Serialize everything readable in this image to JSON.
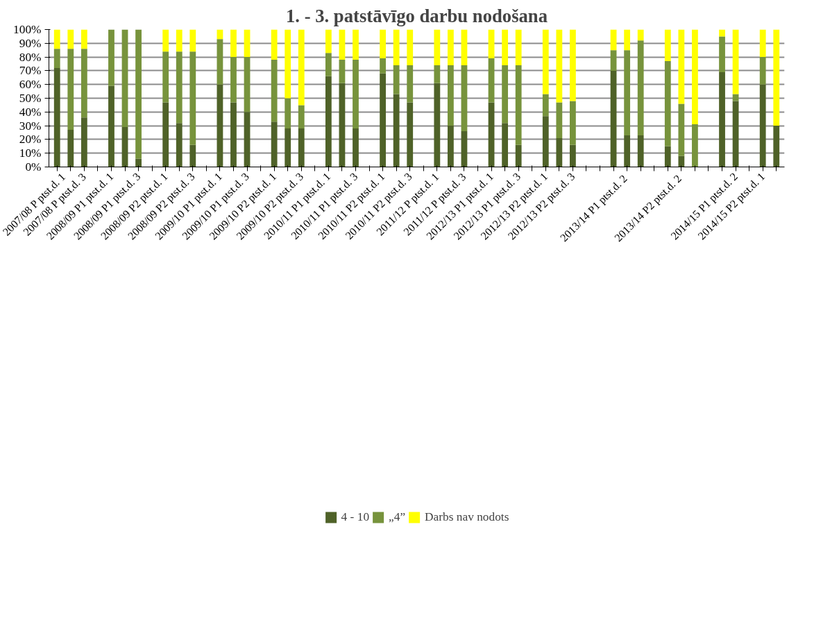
{
  "chart_data": {
    "type": "bar",
    "stacked": true,
    "title": "1. - 3. patstāvīgo darbu nodošana",
    "categories": [
      "2007/08 P ptst.d. 1",
      null,
      "2007/08 P ptst.d. 3",
      null,
      "2008/09 P1 ptst.d. 1",
      null,
      "2008/09 P1 ptst.d. 3",
      null,
      "2008/09 P2 ptst.d. 1",
      null,
      "2008/09 P2 ptst.d. 3",
      null,
      "2009/10 P1 ptst.d. 1",
      null,
      "2009/10 P1 ptst.d. 3",
      null,
      "2009/10 P2 ptst.d. 1",
      null,
      "2009/10 P2 ptst.d. 3",
      null,
      "2010/11 P1 ptst.d. 1",
      null,
      "2010/11 P1 ptst.d. 3",
      null,
      "2010/11 P2 ptst.d. 1",
      null,
      "2010/11 P2 ptst.d. 3",
      null,
      "2011/12 P ptst.d. 1",
      null,
      "2011/12 P ptst.d. 3",
      null,
      "2012/13 P1 ptst.d. 1",
      null,
      "2012/13 P1 ptst.d. 3",
      null,
      "2012/13 P2 ptst.d. 1",
      null,
      "2012/13 P2 ptst.d. 3",
      null,
      null,
      null,
      "2013/14 P1  ptst.d. 2",
      null,
      null,
      null,
      "2013/14 P2  ptst.d. 2",
      null,
      null,
      null,
      "2014/15 P1 ptst.d. 2",
      null,
      "2014/15 P2 ptst.d. 1",
      null
    ],
    "series": [
      {
        "name": "4 - 10",
        "color": "#4f6228",
        "values": [
          72,
          27,
          36,
          null,
          59,
          29,
          6,
          null,
          47,
          32,
          16,
          null,
          60,
          47,
          40,
          null,
          33,
          28,
          28,
          null,
          66,
          61,
          28,
          null,
          68,
          53,
          47,
          null,
          61,
          30,
          26,
          null,
          47,
          32,
          16,
          null,
          37,
          21,
          16,
          null,
          null,
          70,
          23,
          23,
          null,
          15,
          8,
          0,
          null,
          69,
          48,
          null,
          60,
          30
        ]
      },
      {
        "name": "„4”",
        "color": "#77933c",
        "values": [
          14,
          59,
          50,
          null,
          41,
          71,
          94,
          null,
          37,
          52,
          68,
          null,
          33,
          33,
          40,
          null,
          45,
          22,
          17,
          null,
          17,
          17,
          50,
          null,
          11,
          21,
          27,
          null,
          13,
          44,
          48,
          null,
          32,
          42,
          58,
          null,
          16,
          26,
          32,
          null,
          null,
          15,
          62,
          69,
          null,
          62,
          38,
          31,
          null,
          26,
          5,
          null,
          20,
          0
        ]
      },
      {
        "name": "Darbs nav nodots",
        "color": "#ffff00",
        "values": [
          14,
          14,
          14,
          null,
          0,
          0,
          0,
          null,
          16,
          16,
          16,
          null,
          7,
          20,
          20,
          null,
          22,
          50,
          55,
          null,
          17,
          22,
          22,
          null,
          21,
          26,
          26,
          null,
          26,
          26,
          26,
          null,
          21,
          26,
          26,
          null,
          47,
          53,
          52,
          null,
          null,
          15,
          15,
          8,
          null,
          23,
          54,
          69,
          null,
          5,
          47,
          null,
          20,
          70
        ]
      }
    ],
    "ylim": [
      0,
      100
    ],
    "yticks": [
      {
        "value": 0,
        "label": "0%"
      },
      {
        "value": 10,
        "label": "10%"
      },
      {
        "value": 20,
        "label": "20%"
      },
      {
        "value": 30,
        "label": "30%"
      },
      {
        "value": 40,
        "label": "40%"
      },
      {
        "value": 50,
        "label": "50%"
      },
      {
        "value": 60,
        "label": "60%"
      },
      {
        "value": 70,
        "label": "70%"
      },
      {
        "value": 80,
        "label": "80%"
      },
      {
        "value": 90,
        "label": "90%"
      },
      {
        "value": 100,
        "label": "100%"
      }
    ],
    "grid": "y",
    "legend": "bottom"
  }
}
